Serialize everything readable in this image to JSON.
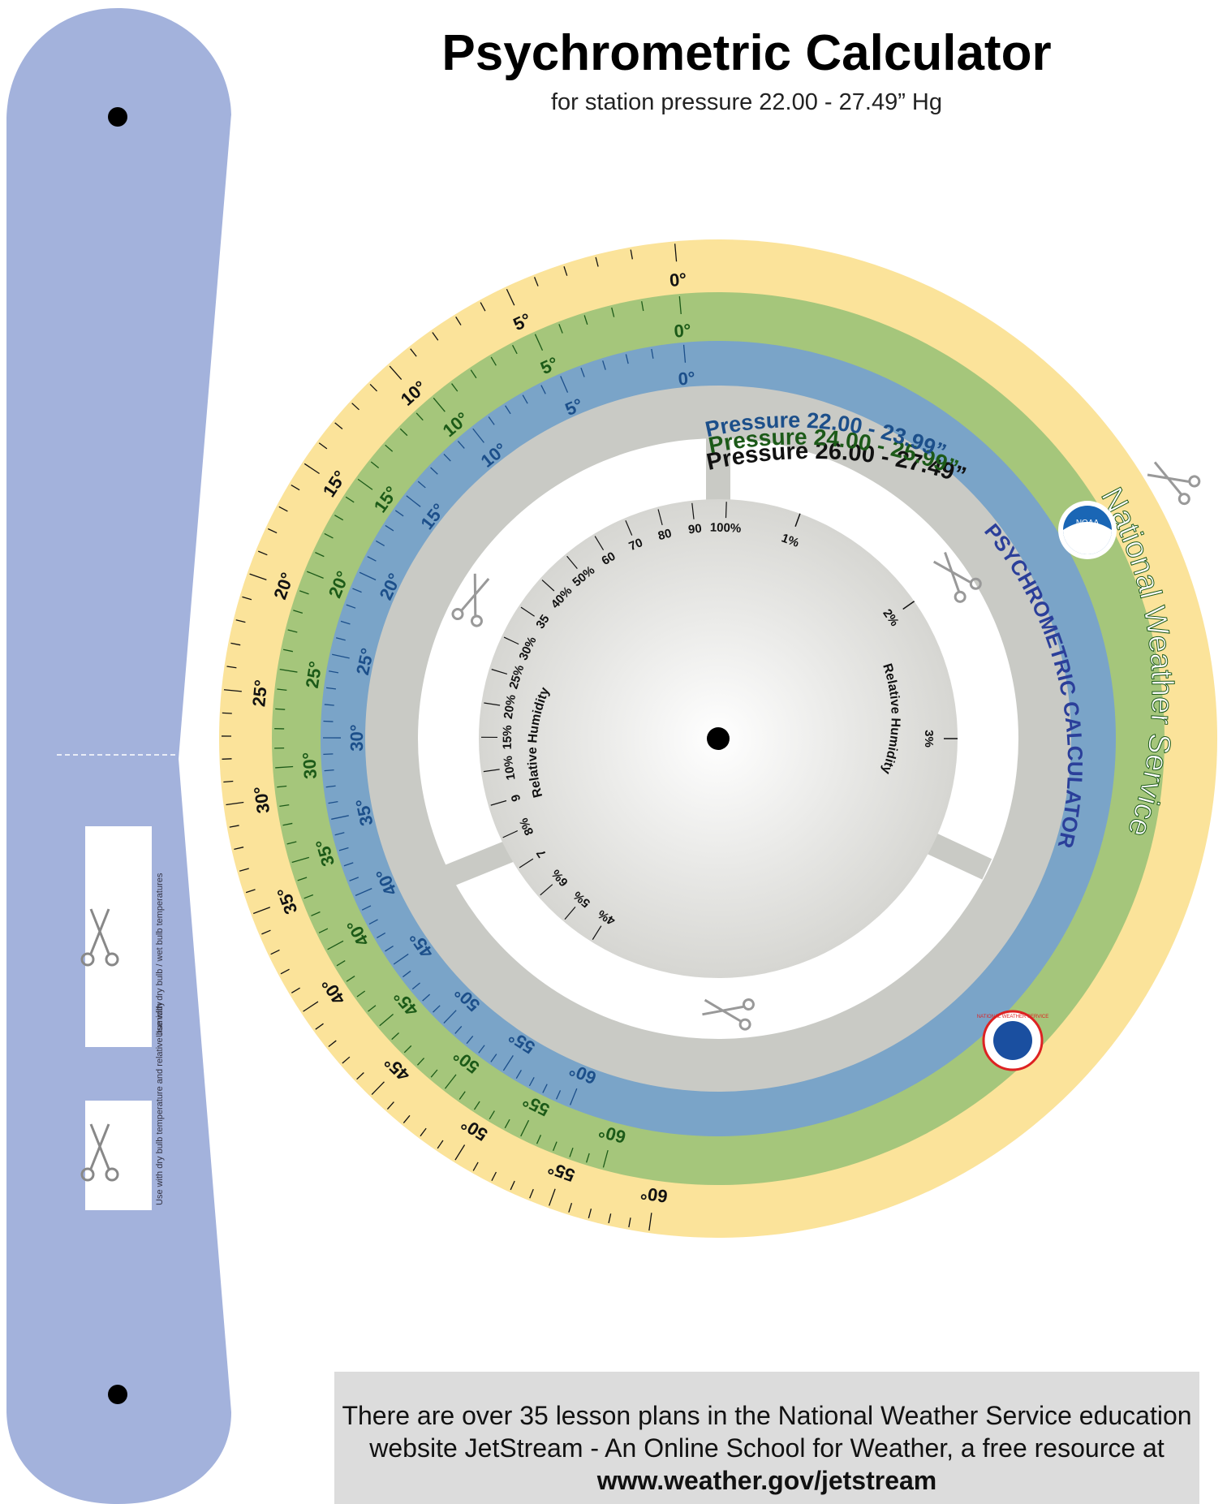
{
  "title": "Psychrometric Calculator",
  "subtitle": "for station pressure 22.00 - 27.49” Hg",
  "colors": {
    "slider": "#a3b2dc",
    "outer_ring": "#fbe39a",
    "middle_ring": "#a5c67b",
    "inner_ring": "#7aa4c8",
    "gray_ring": "#c9cac5",
    "outer_text": "#111111",
    "middle_text": "#1c5a18",
    "inner_text": "#1c4f8a",
    "psychro_text": "#2b3f9a"
  },
  "rings": [
    {
      "label": "Pressure",
      "range": "26.00 - 27.49”"
    },
    {
      "label": "Pressure",
      "range": "24.00 - 25.99”"
    },
    {
      "label": "Pressure",
      "range": "22.00 - 23.99”"
    }
  ],
  "scale_labels": {
    "outer": [
      "0°",
      "5°",
      "10°",
      "15°",
      "20°",
      "25°",
      "30°",
      "35°",
      "40°",
      "45°",
      "50°",
      "55°",
      "60°"
    ],
    "middle": [
      "0°",
      "5°",
      "10°",
      "15°",
      "20°",
      "25°",
      "30°",
      "35°",
      "40°",
      "45°",
      "50°",
      "55°",
      "60°"
    ],
    "inner": [
      "0°",
      "5°",
      "10°",
      "15°",
      "20°",
      "25°",
      "30°",
      "35°",
      "40°",
      "45°",
      "50°",
      "55°",
      "60°"
    ]
  },
  "rh_labels_left": [
    "100%",
    "90",
    "80",
    "70",
    "60",
    "50%",
    "40%",
    "35",
    "30%",
    "25%",
    "20%",
    "15%",
    "10%",
    "9",
    "8%",
    "7",
    "6%",
    "5%",
    "4%"
  ],
  "rh_labels_right": [
    "1%",
    "2%",
    "3%"
  ],
  "rh_text": "Relative Humidity",
  "nws_text": "National Weather Service",
  "psychro_text": "PSYCHROMETRIC CALCULATOR",
  "noaa_text": "NOAA",
  "nws_logo_text": "NATIONAL WEATHER SERVICE",
  "slider_windows": [
    "Use with dry bulb / wet bulb temperatures",
    "Use with dry bulb temperature and relative humidity"
  ],
  "footer": {
    "line": "There are over 35 lesson plans in the National Weather Service education website JetStream - An Online School for Weather, a free resource at",
    "link": "www.weather.gov/jetstream"
  }
}
